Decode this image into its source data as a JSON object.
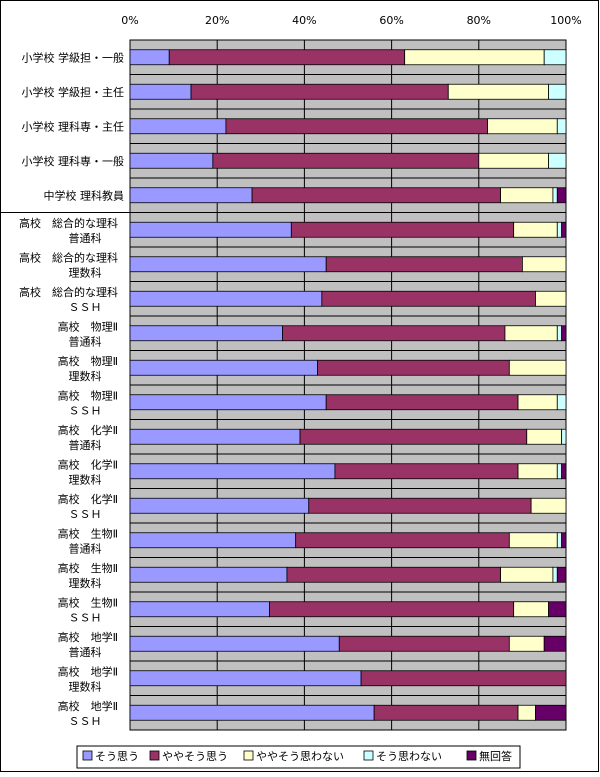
{
  "chart_data": {
    "type": "bar",
    "orientation": "horizontal",
    "stacked": "percent",
    "title": "",
    "xlabel": "",
    "ylabel": "",
    "xlim": [
      0,
      100
    ],
    "xticks": [
      "0%",
      "20%",
      "40%",
      "60%",
      "80%",
      "100%"
    ],
    "grid": true,
    "legend_position": "bottom",
    "categories": [
      [
        "小学校 学級担・一般"
      ],
      [
        "小学校 学級担・主任"
      ],
      [
        "小学校 理科専・主任"
      ],
      [
        "小学校 理科専・一般"
      ],
      [
        "中学校 理科教員"
      ],
      [
        "高校　総合的な理科",
        "普通科"
      ],
      [
        "高校　総合的な理科",
        "理数科"
      ],
      [
        "高校　総合的な理科",
        "ＳＳＨ"
      ],
      [
        "高校　物理Ⅱ",
        "普通科"
      ],
      [
        "高校　物理Ⅱ",
        "理数科"
      ],
      [
        "高校　物理Ⅱ",
        "ＳＳＨ"
      ],
      [
        "高校　化学Ⅱ",
        "普通科"
      ],
      [
        "高校　化学Ⅱ",
        "理数科"
      ],
      [
        "高校　化学Ⅱ",
        "ＳＳＨ"
      ],
      [
        "高校　生物Ⅱ",
        "普通科"
      ],
      [
        "高校　生物Ⅱ",
        "理数科"
      ],
      [
        "高校　生物Ⅱ",
        "ＳＳＨ"
      ],
      [
        "高校　地学Ⅱ",
        "普通科"
      ],
      [
        "高校　地学Ⅱ",
        "理数科"
      ],
      [
        "高校　地学Ⅱ",
        "ＳＳＨ"
      ]
    ],
    "series": [
      {
        "name": "そう思う",
        "color": "#9999ff",
        "values": [
          9,
          14,
          22,
          19,
          28,
          37,
          45,
          44,
          35,
          43,
          45,
          39,
          47,
          41,
          38,
          36,
          32,
          48,
          53,
          56
        ]
      },
      {
        "name": "ややそう思う",
        "color": "#993366",
        "values": [
          54,
          59,
          60,
          61,
          57,
          51,
          45,
          49,
          51,
          44,
          44,
          52,
          42,
          51,
          49,
          49,
          56,
          39,
          47,
          33
        ]
      },
      {
        "name": "ややそう思わない",
        "color": "#ffffcc",
        "values": [
          32,
          23,
          16,
          16,
          12,
          10,
          10,
          7,
          12,
          13,
          9,
          8,
          9,
          8,
          11,
          12,
          8,
          8,
          0,
          4
        ]
      },
      {
        "name": "そう思わない",
        "color": "#ccffff",
        "values": [
          5,
          4,
          2,
          4,
          1,
          1,
          0,
          0,
          1,
          0,
          2,
          1,
          1,
          0,
          1,
          1,
          0,
          0,
          0,
          0
        ]
      },
      {
        "name": "無回答",
        "color": "#660066",
        "values": [
          0,
          0,
          0,
          0,
          2,
          1,
          0,
          0,
          1,
          0,
          0,
          0,
          1,
          0,
          1,
          2,
          4,
          5,
          0,
          7
        ]
      }
    ]
  }
}
